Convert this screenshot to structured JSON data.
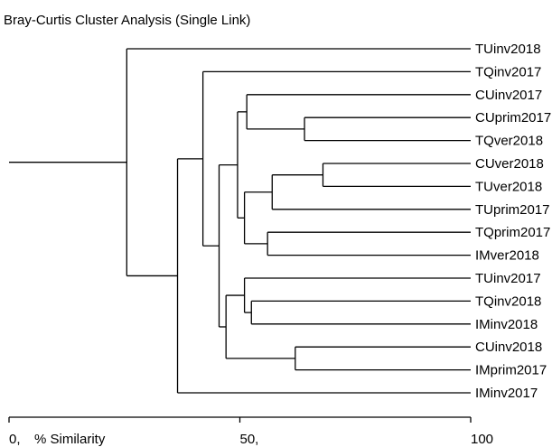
{
  "title": "Bray-Curtis Cluster Analysis (Single Link)",
  "axis": {
    "min": 0,
    "max": 100,
    "ticks": [
      {
        "value": 0,
        "label": "0,"
      },
      {
        "value": 50,
        "label": "50,"
      },
      {
        "value": 100,
        "label": "100"
      }
    ],
    "label": "% Similarity"
  },
  "leaves": [
    "TUinv2018",
    "TQinv2017",
    "CUinv2017",
    "CUprim2017",
    "TQver2018",
    "CUver2018",
    "TUver2018",
    "TUprim2017",
    "TQprim2017",
    "IMver2018",
    "TUinv2017",
    "TQinv2018",
    "IMinv2018",
    "CUinv2018",
    "IMprim2017",
    "IMinv2017"
  ],
  "merges": [
    {
      "id": "m1",
      "a": "CUprim2017",
      "b": "TQver2018",
      "similarity": 64
    },
    {
      "id": "m2",
      "a": "CUver2018",
      "b": "TUver2018",
      "similarity": 68
    },
    {
      "id": "m3",
      "a": "m2",
      "b": "TUprim2017",
      "similarity": 57
    },
    {
      "id": "m4",
      "a": "TQprim2017",
      "b": "IMver2018",
      "similarity": 56
    },
    {
      "id": "m5",
      "a": "m3",
      "b": "m4",
      "similarity": 51
    },
    {
      "id": "m6",
      "a": "CUinv2017",
      "b": "m1",
      "similarity": 51.5
    },
    {
      "id": "m7",
      "a": "m6",
      "b": "m5",
      "similarity": 49.5
    },
    {
      "id": "m8",
      "a": "TQinv2018",
      "b": "IMinv2018",
      "similarity": 52.5
    },
    {
      "id": "m9",
      "a": "TUinv2017",
      "b": "m8",
      "similarity": 51
    },
    {
      "id": "m10",
      "a": "CUinv2018",
      "b": "IMprim2017",
      "similarity": 62
    },
    {
      "id": "m11",
      "a": "m9",
      "b": "m10",
      "similarity": 47
    },
    {
      "id": "m12",
      "a": "m7",
      "b": "m11",
      "similarity": 45.5
    },
    {
      "id": "m13",
      "a": "TQinv2017",
      "b": "m12",
      "similarity": 42
    },
    {
      "id": "m14",
      "a": "m13",
      "b": "IMinv2017",
      "similarity": 36.5
    },
    {
      "id": "m15",
      "a": "TUinv2018",
      "b": "m14",
      "similarity": 25.5
    },
    {
      "id": "root",
      "a": "m15",
      "b": null,
      "similarity": 0
    }
  ]
}
